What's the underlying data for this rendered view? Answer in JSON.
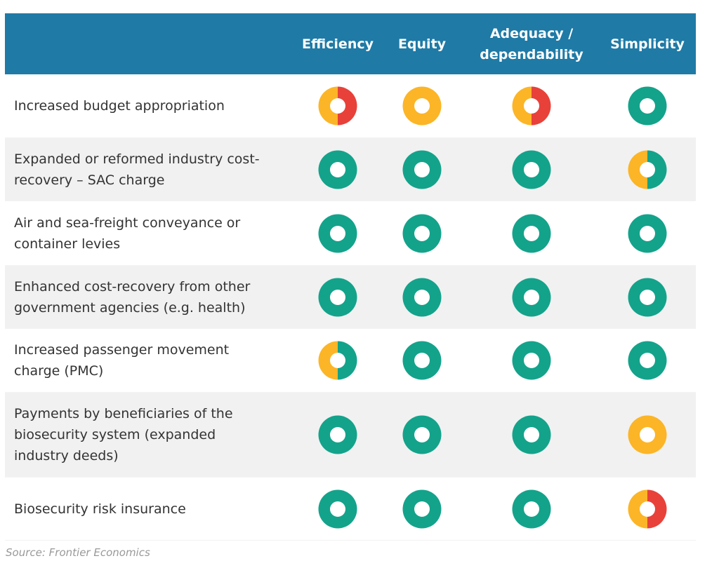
{
  "source": "Source: Frontier Economics",
  "colors": {
    "header_bg": "#1f7aa6",
    "header_text": "#ffffff",
    "row_alt_bg": "#f1f1f1",
    "green": "#13a38b",
    "amber": "#fcb526",
    "red": "#e8413a"
  },
  "chart_data": {
    "type": "table",
    "columns": [
      "Efficiency",
      "Equity",
      "Adequacy /\ndependability",
      "Simplicity"
    ],
    "legend_note": "",
    "rows": [
      {
        "label": "Increased budget appropriation",
        "ratings": [
          [
            "amber",
            "red"
          ],
          [
            "amber"
          ],
          [
            "amber",
            "red"
          ],
          [
            "green"
          ]
        ]
      },
      {
        "label": "Expanded or reformed industry cost-\nrecovery – SAC charge",
        "ratings": [
          [
            "green"
          ],
          [
            "green"
          ],
          [
            "green"
          ],
          [
            "amber",
            "green"
          ]
        ]
      },
      {
        "label": "Air and sea-freight conveyance or\ncontainer levies",
        "ratings": [
          [
            "green"
          ],
          [
            "green"
          ],
          [
            "green"
          ],
          [
            "green"
          ]
        ]
      },
      {
        "label": "Enhanced cost-recovery from other\ngovernment agencies (e.g. health)",
        "ratings": [
          [
            "green"
          ],
          [
            "green"
          ],
          [
            "green"
          ],
          [
            "green"
          ]
        ]
      },
      {
        "label": "Increased passenger movement\ncharge (PMC)",
        "ratings": [
          [
            "amber",
            "green"
          ],
          [
            "green"
          ],
          [
            "green"
          ],
          [
            "green"
          ]
        ]
      },
      {
        "label": "Payments by beneficiaries of the\nbiosecurity system (expanded\nindustry deeds)",
        "ratings": [
          [
            "green"
          ],
          [
            "green"
          ],
          [
            "green"
          ],
          [
            "amber"
          ]
        ]
      },
      {
        "label": "Biosecurity risk insurance",
        "ratings": [
          [
            "green"
          ],
          [
            "green"
          ],
          [
            "green"
          ],
          [
            "amber",
            "red"
          ]
        ]
      }
    ]
  }
}
